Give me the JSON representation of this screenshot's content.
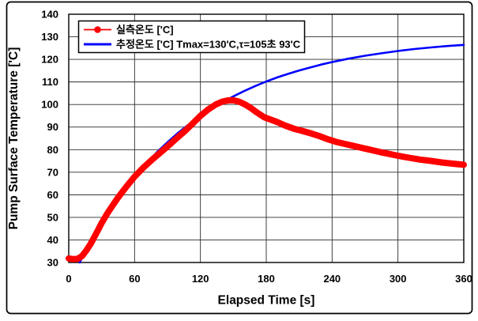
{
  "figure": {
    "background": "#FFFFFF",
    "border_color": "#000000",
    "plot_background": "#FFFFFF",
    "gridline_color": "#2B2B2B"
  },
  "chart_data": {
    "type": "line",
    "title": "",
    "xlabel": "Elapsed Time [s]",
    "ylabel": "Pump Surface Temperature ['C]",
    "xlim": [
      0,
      360
    ],
    "ylim": [
      30,
      140
    ],
    "x_ticks": [
      0,
      60,
      120,
      180,
      240,
      300,
      360
    ],
    "y_ticks": [
      30,
      40,
      50,
      60,
      70,
      80,
      90,
      100,
      110,
      120,
      130,
      140
    ],
    "grid": true,
    "legend_position": "top-left",
    "series": [
      {
        "name": "실측온도 ['C]",
        "color": "#FF0000",
        "marker": "circle",
        "line_width": 8,
        "points": [
          [
            0,
            31.8
          ],
          [
            4,
            31.5
          ],
          [
            8,
            31.6
          ],
          [
            12,
            32.8
          ],
          [
            16,
            35.3
          ],
          [
            20,
            38.3
          ],
          [
            25,
            42.8
          ],
          [
            30,
            47.5
          ],
          [
            35,
            51.6
          ],
          [
            40,
            55.3
          ],
          [
            45,
            58.8
          ],
          [
            50,
            62.0
          ],
          [
            55,
            65.1
          ],
          [
            60,
            68.0
          ],
          [
            68,
            72.0
          ],
          [
            76,
            75.6
          ],
          [
            84,
            78.9
          ],
          [
            90,
            81.4
          ],
          [
            98,
            84.9
          ],
          [
            106,
            88.3
          ],
          [
            113,
            91.6
          ],
          [
            120,
            95.0
          ],
          [
            127,
            97.8
          ],
          [
            134,
            100.0
          ],
          [
            140,
            101.3
          ],
          [
            145,
            101.8
          ],
          [
            150,
            101.9
          ],
          [
            155,
            101.3
          ],
          [
            160,
            100.2
          ],
          [
            166,
            98.4
          ],
          [
            172,
            96.3
          ],
          [
            178,
            94.4
          ],
          [
            184,
            93.3
          ],
          [
            190,
            92.2
          ],
          [
            197,
            90.7
          ],
          [
            205,
            89.3
          ],
          [
            212,
            88.4
          ],
          [
            220,
            87.3
          ],
          [
            228,
            86.1
          ],
          [
            236,
            84.6
          ],
          [
            244,
            83.4
          ],
          [
            252,
            82.5
          ],
          [
            260,
            81.6
          ],
          [
            268,
            80.7
          ],
          [
            276,
            79.8
          ],
          [
            284,
            78.9
          ],
          [
            292,
            78.1
          ],
          [
            300,
            77.3
          ],
          [
            310,
            76.4
          ],
          [
            320,
            75.6
          ],
          [
            330,
            75.0
          ],
          [
            340,
            74.3
          ],
          [
            350,
            73.8
          ],
          [
            360,
            73.3
          ]
        ]
      },
      {
        "name": "추정온도 ['C] Tmax=130'C,τ=105초 93'C",
        "color": "#0000FF",
        "marker": "none",
        "line_width": 2.6,
        "points": [
          [
            10,
            30.0
          ],
          [
            15,
            34.7
          ],
          [
            20,
            39.1
          ],
          [
            25,
            43.3
          ],
          [
            30,
            47.3
          ],
          [
            35,
            51.2
          ],
          [
            40,
            54.8
          ],
          [
            45,
            58.3
          ],
          [
            50,
            61.6
          ],
          [
            55,
            64.9
          ],
          [
            60,
            67.9
          ],
          [
            70,
            73.5
          ],
          [
            80,
            78.7
          ],
          [
            90,
            83.3
          ],
          [
            100,
            87.6
          ],
          [
            110,
            91.4
          ],
          [
            120,
            94.9
          ],
          [
            130,
            98.1
          ],
          [
            140,
            101.0
          ],
          [
            150,
            103.6
          ],
          [
            160,
            106.0
          ],
          [
            170,
            108.2
          ],
          [
            180,
            110.2
          ],
          [
            190,
            112.0
          ],
          [
            200,
            113.6
          ],
          [
            210,
            115.1
          ],
          [
            220,
            116.4
          ],
          [
            230,
            117.7
          ],
          [
            240,
            118.8
          ],
          [
            255,
            120.3
          ],
          [
            270,
            121.6
          ],
          [
            285,
            122.7
          ],
          [
            300,
            123.7
          ],
          [
            315,
            124.6
          ],
          [
            330,
            125.3
          ],
          [
            345,
            125.9
          ],
          [
            360,
            126.4
          ]
        ]
      }
    ],
    "estimation_params": {
      "Tmax_C": 130,
      "tau_s": 105,
      "temp_at_tau_C": 93
    }
  }
}
